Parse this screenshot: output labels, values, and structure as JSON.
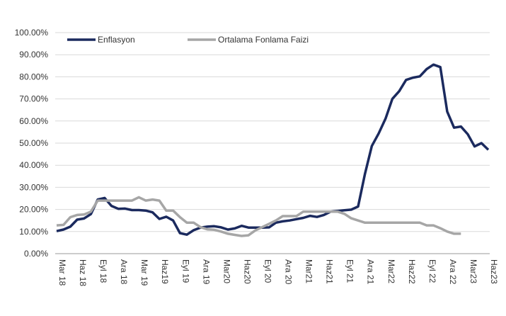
{
  "chart_data": {
    "type": "line",
    "categories": [
      "Mar 18",
      null,
      null,
      "Haz 18",
      null,
      null,
      "Eyl 18",
      null,
      null,
      "Ara 18",
      null,
      null,
      "Mar 19",
      null,
      null,
      "Haz19",
      null,
      null,
      "Eyl 19",
      null,
      null,
      "Ara 19",
      null,
      null,
      "Mar20",
      null,
      null,
      "Haz20",
      null,
      null,
      "Eyl 20",
      null,
      null,
      "Ara 20",
      null,
      null,
      "Mar21",
      null,
      null,
      "Haz21",
      null,
      null,
      "Eyl 21",
      null,
      null,
      "Ara 21",
      null,
      null,
      "Mar22",
      null,
      null,
      "Haz22",
      null,
      null,
      "Eyl 22",
      null,
      null,
      "Ara 22",
      null,
      null,
      "Mar23",
      null,
      null,
      "Haz23"
    ],
    "series": [
      {
        "name": "Enflasyon",
        "color": "#1b2a5e",
        "values": [
          10.2,
          10.9,
          12.2,
          15.4,
          15.9,
          17.9,
          24.5,
          25.2,
          21.6,
          20.3,
          20.4,
          19.7,
          19.7,
          19.5,
          18.7,
          15.7,
          16.7,
          15.0,
          9.3,
          8.6,
          10.6,
          11.8,
          12.2,
          12.4,
          11.9,
          10.9,
          11.4,
          12.6,
          11.8,
          11.8,
          11.8,
          11.9,
          14.0,
          14.6,
          15.0,
          15.6,
          16.2,
          17.1,
          16.6,
          17.5,
          19.0,
          19.3,
          19.6,
          19.9,
          21.3,
          36.1,
          48.7,
          54.4,
          61.1,
          70.0,
          73.5,
          78.6,
          79.6,
          80.2,
          83.5,
          85.5,
          84.4,
          64.3,
          57.0,
          57.5,
          54.0,
          48.5,
          50.0,
          47.0
        ]
      },
      {
        "name": "Ortalama Fonlama Faizi",
        "color": "#a6a6a6",
        "values": [
          12.8,
          13.0,
          16.5,
          17.5,
          17.7,
          19.0,
          24.0,
          24.0,
          24.0,
          24.0,
          24.0,
          24.0,
          25.5,
          24.0,
          24.5,
          24.0,
          19.5,
          19.5,
          16.5,
          14.0,
          14.0,
          12.0,
          11.0,
          10.8,
          10.0,
          9.0,
          8.5,
          8.0,
          8.3,
          10.5,
          12.0,
          13.5,
          15.0,
          17.0,
          17.0,
          17.0,
          19.0,
          19.0,
          19.0,
          19.0,
          19.0,
          19.0,
          18.0,
          16.0,
          15.0,
          14.0,
          14.0,
          14.0,
          14.0,
          14.0,
          14.0,
          14.0,
          14.0,
          14.0,
          12.8,
          12.8,
          11.5,
          10.0,
          9.0,
          9.0,
          null,
          null,
          null,
          null
        ]
      }
    ],
    "ylim": [
      0,
      100
    ],
    "yticks": [
      {
        "value": 0,
        "label": "0.00%"
      },
      {
        "value": 10,
        "label": "10.00%"
      },
      {
        "value": 20,
        "label": "20.00%"
      },
      {
        "value": 30,
        "label": "30.00%"
      },
      {
        "value": 40,
        "label": "40.00%"
      },
      {
        "value": 50,
        "label": "50.00%"
      },
      {
        "value": 60,
        "label": "60.00%"
      },
      {
        "value": 70,
        "label": "70.00%"
      },
      {
        "value": 80,
        "label": "80.00%"
      },
      {
        "value": 90,
        "label": "90.00%"
      },
      {
        "value": 100,
        "label": "100.00%"
      }
    ],
    "grid": true,
    "legend": "top-left"
  }
}
